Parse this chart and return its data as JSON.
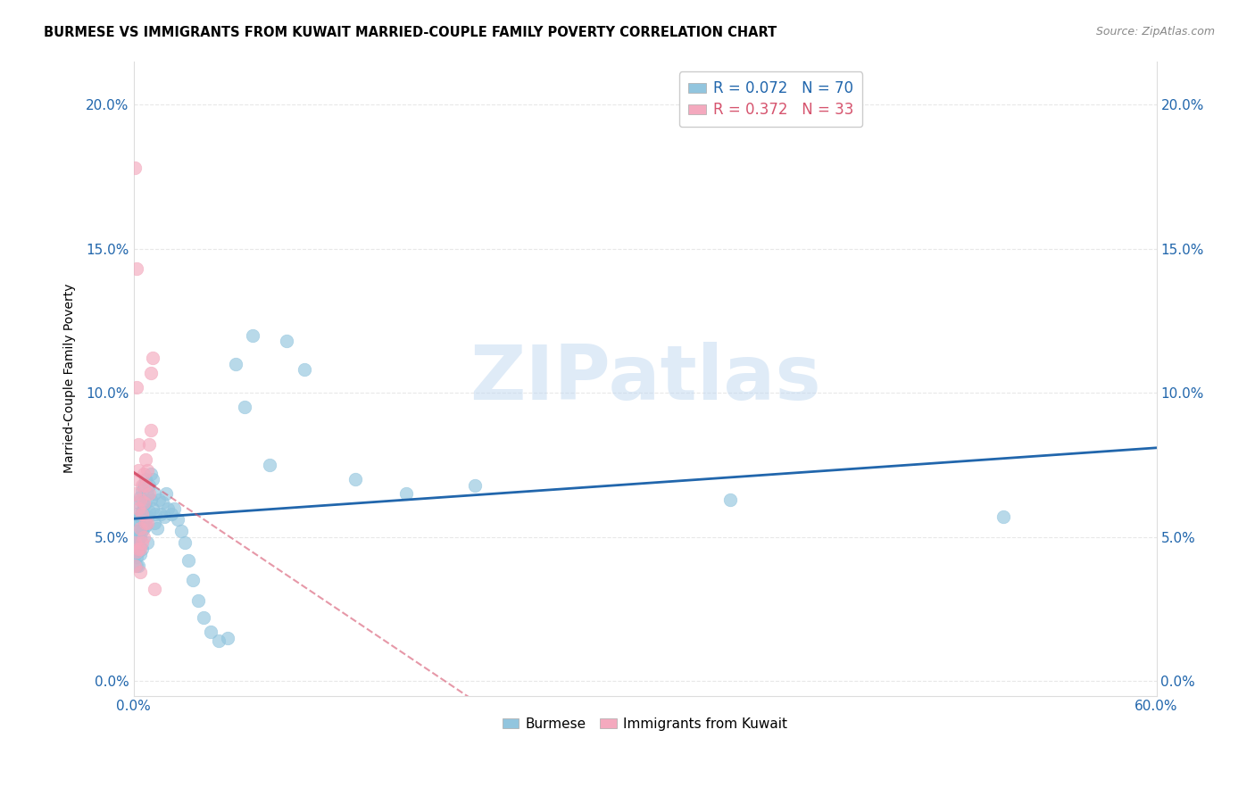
{
  "title": "BURMESE VS IMMIGRANTS FROM KUWAIT MARRIED-COUPLE FAMILY POVERTY CORRELATION CHART",
  "source": "Source: ZipAtlas.com",
  "ylabel": "Married-Couple Family Poverty",
  "xlim": [
    0.0,
    0.6
  ],
  "ylim": [
    -0.005,
    0.215
  ],
  "xticks": [
    0.0,
    0.6
  ],
  "xticklabels": [
    "0.0%",
    "60.0%"
  ],
  "yticks": [
    0.0,
    0.05,
    0.1,
    0.15,
    0.2
  ],
  "yticklabels": [
    "0.0%",
    "5.0%",
    "10.0%",
    "15.0%",
    "20.0%"
  ],
  "blue_color": "#92c5de",
  "pink_color": "#f4a9be",
  "blue_line_color": "#2166ac",
  "pink_line_color": "#d6546e",
  "blue_R": "0.072",
  "blue_N": "70",
  "pink_R": "0.372",
  "pink_N": "33",
  "watermark": "ZIPatlas",
  "burmese_x": [
    0.001,
    0.001,
    0.001,
    0.001,
    0.002,
    0.002,
    0.002,
    0.002,
    0.002,
    0.003,
    0.003,
    0.003,
    0.003,
    0.003,
    0.004,
    0.004,
    0.004,
    0.004,
    0.005,
    0.005,
    0.005,
    0.005,
    0.006,
    0.006,
    0.006,
    0.007,
    0.007,
    0.007,
    0.008,
    0.008,
    0.008,
    0.009,
    0.009,
    0.01,
    0.01,
    0.011,
    0.011,
    0.012,
    0.012,
    0.013,
    0.014,
    0.015,
    0.016,
    0.017,
    0.018,
    0.019,
    0.02,
    0.022,
    0.024,
    0.026,
    0.028,
    0.03,
    0.032,
    0.035,
    0.038,
    0.041,
    0.045,
    0.05,
    0.055,
    0.06,
    0.065,
    0.07,
    0.08,
    0.09,
    0.1,
    0.13,
    0.16,
    0.2,
    0.35,
    0.51
  ],
  "burmese_y": [
    0.055,
    0.052,
    0.048,
    0.044,
    0.058,
    0.052,
    0.047,
    0.043,
    0.04,
    0.062,
    0.056,
    0.05,
    0.045,
    0.04,
    0.064,
    0.057,
    0.05,
    0.044,
    0.066,
    0.059,
    0.052,
    0.046,
    0.068,
    0.061,
    0.053,
    0.07,
    0.062,
    0.054,
    0.065,
    0.057,
    0.048,
    0.068,
    0.059,
    0.072,
    0.063,
    0.07,
    0.06,
    0.065,
    0.055,
    0.058,
    0.053,
    0.063,
    0.058,
    0.062,
    0.057,
    0.065,
    0.06,
    0.058,
    0.06,
    0.056,
    0.052,
    0.048,
    0.042,
    0.035,
    0.028,
    0.022,
    0.017,
    0.014,
    0.015,
    0.11,
    0.095,
    0.12,
    0.075,
    0.118,
    0.108,
    0.07,
    0.065,
    0.068,
    0.063,
    0.057
  ],
  "kuwait_x": [
    0.001,
    0.001,
    0.001,
    0.001,
    0.002,
    0.002,
    0.002,
    0.002,
    0.003,
    0.003,
    0.003,
    0.003,
    0.004,
    0.004,
    0.004,
    0.004,
    0.005,
    0.005,
    0.005,
    0.006,
    0.006,
    0.006,
    0.007,
    0.007,
    0.007,
    0.008,
    0.008,
    0.009,
    0.009,
    0.01,
    0.01,
    0.011,
    0.012
  ],
  "kuwait_y": [
    0.178,
    0.065,
    0.048,
    0.04,
    0.143,
    0.102,
    0.07,
    0.045,
    0.082,
    0.073,
    0.06,
    0.046,
    0.063,
    0.053,
    0.046,
    0.038,
    0.068,
    0.058,
    0.048,
    0.072,
    0.062,
    0.05,
    0.077,
    0.068,
    0.055,
    0.073,
    0.055,
    0.082,
    0.065,
    0.087,
    0.107,
    0.112,
    0.032
  ]
}
